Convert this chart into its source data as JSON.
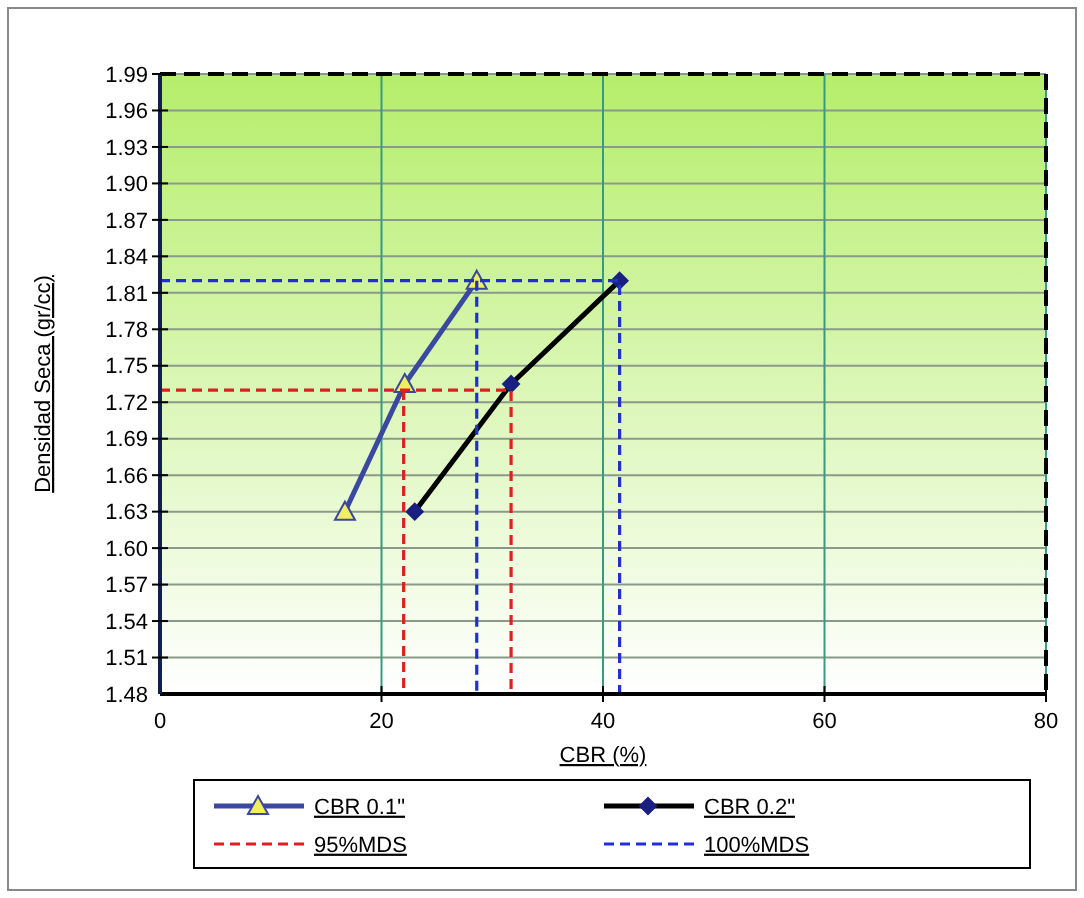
{
  "chart_data": {
    "type": "line",
    "xlabel": "CBR  (%)",
    "ylabel": "Densidad  Seca (gr/cc)",
    "xlim": [
      0,
      80
    ],
    "xticks": [
      0,
      20,
      40,
      60,
      80
    ],
    "ylim": [
      1.48,
      1.99
    ],
    "yticks": [
      1.48,
      1.51,
      1.54,
      1.57,
      {
        "value": 1.6,
        "label": "1.60"
      },
      1.63,
      1.66,
      1.69,
      1.72,
      1.75,
      1.78,
      1.81,
      1.84,
      1.87,
      {
        "value": 1.9,
        "label": "1.90"
      },
      1.93,
      1.96,
      1.99
    ],
    "grid": true,
    "legend": "bottom",
    "series": [
      {
        "name": "CBR 0.1\"",
        "color": "#3a48a0",
        "x": [
          16.7,
          22.1,
          28.6
        ],
        "values": [
          1.63,
          1.735,
          1.82
        ],
        "marker": "triangle",
        "line_style": "solid"
      },
      {
        "name": "CBR 0.2\"",
        "color": "#000000",
        "x": [
          23,
          31.7,
          41.5
        ],
        "values": [
          1.63,
          1.735,
          1.82
        ],
        "marker": "diamond",
        "line_style": "solid"
      },
      {
        "name": "95%MDS",
        "color": "#e02020",
        "x": [
          0,
          31.7,
          31.7
        ],
        "values": [
          1.73,
          1.73,
          1.48
        ],
        "marker": "none",
        "line_style": "dashed"
      },
      {
        "color": "#e02020",
        "x": [
          22,
          22
        ],
        "values": [
          1.73,
          1.48
        ],
        "marker": "none",
        "line_style": "dashed"
      },
      {
        "name": "100%MDS",
        "color": "#2030d0",
        "x": [
          0,
          41.5,
          41.5
        ],
        "values": [
          1.82,
          1.82,
          1.48
        ],
        "marker": "none",
        "line_style": "dashed"
      },
      {
        "color": "#2030d0",
        "x": [
          28.6,
          28.6
        ],
        "values": [
          1.82,
          1.48
        ],
        "marker": "none",
        "line_style": "dashed"
      }
    ]
  }
}
